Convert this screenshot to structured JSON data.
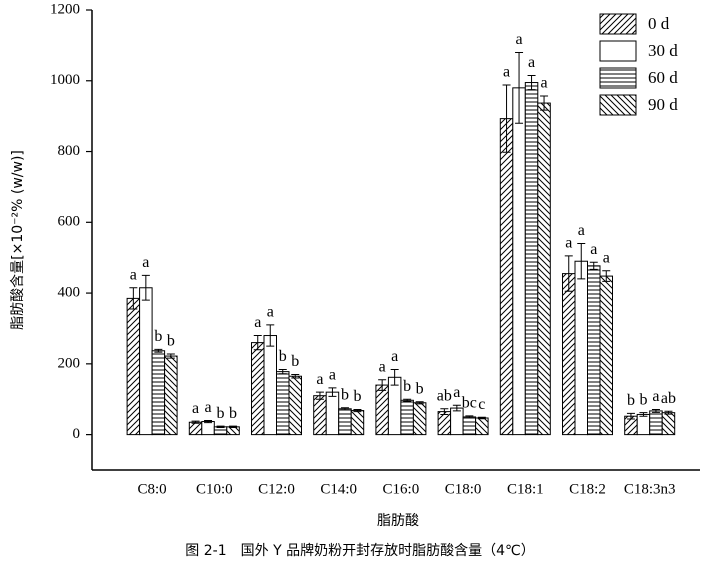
{
  "chart_data": {
    "type": "bar",
    "y_label": "脂肪酸含量[×10⁻²% (w/w)]",
    "x_label": "脂肪酸",
    "caption": "图 2-1　国外 Y 品牌奶粉开封存放时脂肪酸含量（4℃）",
    "categories": [
      "C8:0",
      "C10:0",
      "C12:0",
      "C14:0",
      "C16:0",
      "C18:0",
      "C18:1",
      "C18:2",
      "C18:3n3"
    ],
    "series": [
      {
        "name": "0 d",
        "color": "#000000",
        "hatch": "diagonal-up",
        "values": [
          385,
          35,
          260,
          110,
          140,
          65,
          893,
          455,
          52
        ],
        "errors": [
          30,
          3,
          20,
          10,
          15,
          8,
          95,
          50,
          8
        ],
        "letters": [
          "a",
          "a",
          "a",
          "a",
          "a",
          "ab",
          "a",
          "a",
          "b"
        ]
      },
      {
        "name": "30 d",
        "color": "#000000",
        "hatch": "none",
        "values": [
          415,
          37,
          280,
          120,
          162,
          75,
          980,
          490,
          57
        ],
        "errors": [
          35,
          3,
          30,
          12,
          22,
          8,
          100,
          50,
          5
        ],
        "letters": [
          "a",
          "a",
          "a",
          "a",
          "a",
          "a",
          "a",
          "a",
          "b"
        ]
      },
      {
        "name": "60 d",
        "color": "#000000",
        "hatch": "horizontal",
        "values": [
          237,
          22,
          178,
          73,
          97,
          50,
          995,
          477,
          67
        ],
        "errors": [
          4,
          2,
          6,
          3,
          3,
          3,
          20,
          10,
          4
        ],
        "letters": [
          "b",
          "b",
          "b",
          "b",
          "b",
          "bc",
          "a",
          "a",
          "a"
        ]
      },
      {
        "name": "90 d",
        "color": "#000000",
        "hatch": "diagonal-down",
        "values": [
          222,
          22,
          165,
          68,
          90,
          47,
          937,
          448,
          62
        ],
        "errors": [
          6,
          2,
          5,
          3,
          3,
          2,
          20,
          15,
          4
        ],
        "letters": [
          "b",
          "b",
          "b",
          "b",
          "b",
          "c",
          "a",
          "a",
          "ab"
        ]
      }
    ],
    "ylim": [
      -100,
      1200
    ],
    "yticks": [
      0,
      200,
      400,
      600,
      800,
      1000,
      1200
    ],
    "grid": false,
    "legend": "upper right"
  }
}
